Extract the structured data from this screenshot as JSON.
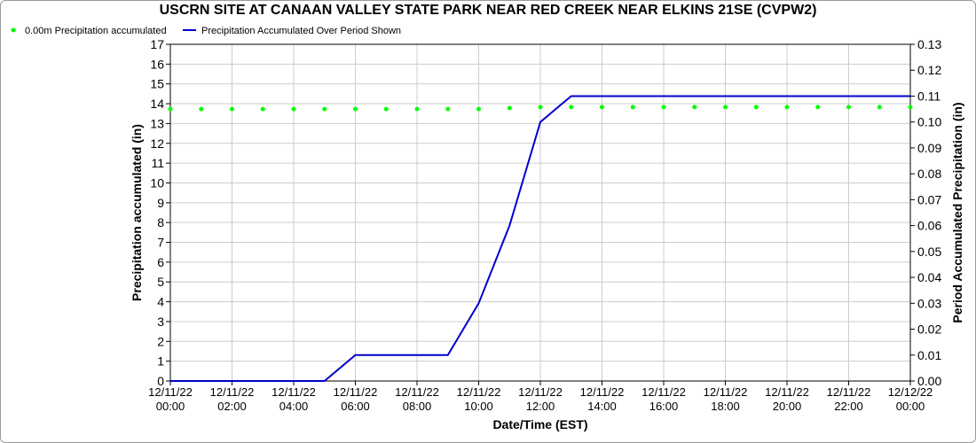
{
  "chart_data": {
    "type": "line",
    "title": "USCRN SITE AT CANAAN VALLEY STATE PARK NEAR RED CREEK NEAR ELKINS 21SE (CVPW2)",
    "xlabel": "Date/Time (EST)",
    "ylabel_left": "Precipitation accumulated (in)",
    "ylabel_right": "Period Accumulated Precipitation (in)",
    "ylim_left": [
      0,
      17
    ],
    "ylim_right": [
      0,
      0.13
    ],
    "xlim_hours": [
      0,
      24
    ],
    "left_ticks": [
      "0",
      "1",
      "2",
      "3",
      "4",
      "5",
      "6",
      "7",
      "8",
      "9",
      "10",
      "11",
      "12",
      "13",
      "14",
      "15",
      "16",
      "17"
    ],
    "right_ticks": [
      "0.00",
      "0.01",
      "0.02",
      "0.03",
      "0.04",
      "0.05",
      "0.06",
      "0.07",
      "0.08",
      "0.09",
      "0.10",
      "0.11",
      "0.12",
      "0.13"
    ],
    "x_ticks": [
      {
        "date": "12/11/22",
        "time": "00:00"
      },
      {
        "date": "12/11/22",
        "time": "02:00"
      },
      {
        "date": "12/11/22",
        "time": "04:00"
      },
      {
        "date": "12/11/22",
        "time": "06:00"
      },
      {
        "date": "12/11/22",
        "time": "08:00"
      },
      {
        "date": "12/11/22",
        "time": "10:00"
      },
      {
        "date": "12/11/22",
        "time": "12:00"
      },
      {
        "date": "12/11/22",
        "time": "14:00"
      },
      {
        "date": "12/11/22",
        "time": "16:00"
      },
      {
        "date": "12/11/22",
        "time": "18:00"
      },
      {
        "date": "12/11/22",
        "time": "20:00"
      },
      {
        "date": "12/11/22",
        "time": "22:00"
      },
      {
        "date": "12/12/22",
        "time": "00:00"
      }
    ],
    "grid": true,
    "legend_position": "top-left",
    "series": [
      {
        "name": "0.00m Precipitation accumulated",
        "axis": "left",
        "style": "points",
        "color": "#00ff00",
        "points": [
          [
            0,
            13.73
          ],
          [
            1,
            13.73
          ],
          [
            2,
            13.73
          ],
          [
            3,
            13.73
          ],
          [
            4,
            13.73
          ],
          [
            5,
            13.73
          ],
          [
            6,
            13.73
          ],
          [
            7,
            13.73
          ],
          [
            8,
            13.73
          ],
          [
            9,
            13.73
          ],
          [
            10,
            13.73
          ],
          [
            11,
            13.78
          ],
          [
            12,
            13.83
          ],
          [
            13,
            13.83
          ],
          [
            14,
            13.83
          ],
          [
            15,
            13.83
          ],
          [
            16,
            13.83
          ],
          [
            17,
            13.83
          ],
          [
            18,
            13.83
          ],
          [
            19,
            13.83
          ],
          [
            20,
            13.83
          ],
          [
            21,
            13.83
          ],
          [
            22,
            13.83
          ],
          [
            23,
            13.83
          ],
          [
            24,
            13.83
          ]
        ]
      },
      {
        "name": "Precipitation Accumulated Over Period Shown",
        "axis": "right",
        "style": "line",
        "color": "#0000cc",
        "points": [
          [
            0,
            0.0
          ],
          [
            1,
            0.0
          ],
          [
            2,
            0.0
          ],
          [
            3,
            0.0
          ],
          [
            4,
            0.0
          ],
          [
            5,
            0.0
          ],
          [
            6,
            0.01
          ],
          [
            7,
            0.01
          ],
          [
            8,
            0.01
          ],
          [
            9,
            0.01
          ],
          [
            10,
            0.03
          ],
          [
            11,
            0.06
          ],
          [
            12,
            0.1
          ],
          [
            13,
            0.11
          ],
          [
            14,
            0.11
          ],
          [
            15,
            0.11
          ],
          [
            16,
            0.11
          ],
          [
            17,
            0.11
          ],
          [
            18,
            0.11
          ],
          [
            19,
            0.11
          ],
          [
            20,
            0.11
          ],
          [
            21,
            0.11
          ],
          [
            22,
            0.11
          ],
          [
            23,
            0.11
          ],
          [
            24,
            0.11
          ]
        ]
      }
    ]
  }
}
